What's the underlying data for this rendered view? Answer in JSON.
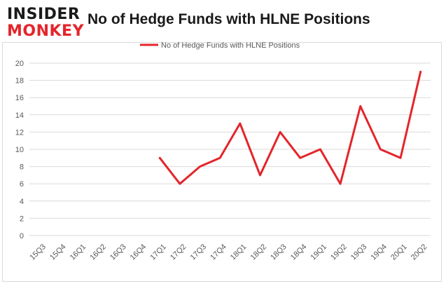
{
  "brand": {
    "logo_top": "INSIDER",
    "logo_bottom": "MONKEY"
  },
  "chart_data": {
    "type": "line",
    "title": "No of Hedge Funds with HLNE Positions",
    "xlabel": "",
    "ylabel": "",
    "categories": [
      "15Q3",
      "15Q4",
      "16Q1",
      "16Q2",
      "16Q3",
      "16Q4",
      "17Q1",
      "17Q2",
      "17Q3",
      "17Q4",
      "18Q1",
      "18Q2",
      "18Q3",
      "18Q4",
      "19Q1",
      "19Q2",
      "19Q3",
      "19Q4",
      "20Q1",
      "20Q2"
    ],
    "series": [
      {
        "name": "No of Hedge Funds with HLNE Positions",
        "color": "#e4252b",
        "values": [
          null,
          null,
          null,
          null,
          null,
          null,
          9,
          6,
          8,
          9,
          13,
          7,
          12,
          9,
          10,
          6,
          15,
          10,
          9,
          19
        ]
      }
    ],
    "ylim": [
      0,
      20
    ],
    "yticks": [
      0,
      2,
      4,
      6,
      8,
      10,
      12,
      14,
      16,
      18,
      20
    ],
    "grid": true,
    "legend": "top-center",
    "grid_color": "#d9d9d9"
  }
}
